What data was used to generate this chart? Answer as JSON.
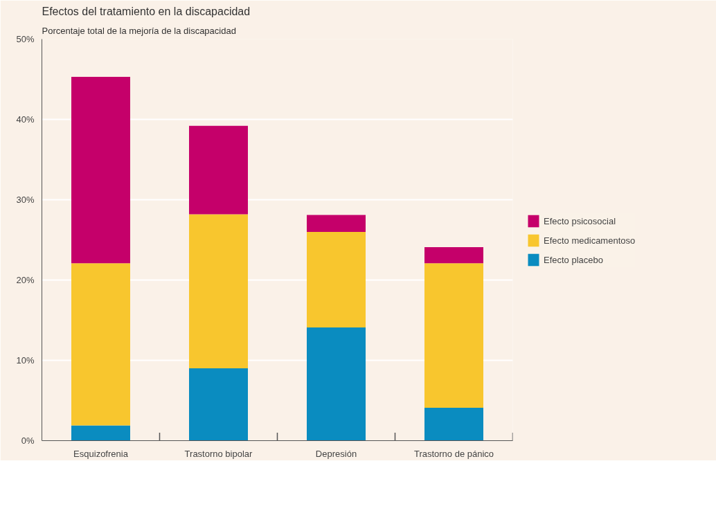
{
  "chart_data": {
    "type": "bar",
    "title": "Efectos del tratamiento en la discapacidad",
    "subtitle": "Porcentaje total de la mejoría de la discapacidad",
    "categories": [
      "Esquizofrenia",
      "Trastorno bipolar",
      "Depresión",
      "Trastorno de pánico"
    ],
    "stacked": true,
    "series": [
      {
        "name": "Efecto placebo",
        "color": "#0a8cc0",
        "values": [
          1.9,
          9.0,
          14.1,
          4.1
        ]
      },
      {
        "name": "Efecto medicamentoso",
        "color": "#f8c62e",
        "values": [
          20.2,
          19.2,
          11.9,
          18.0
        ]
      },
      {
        "name": "Efecto psicosocial",
        "color": "#c5006a",
        "values": [
          23.2,
          11.0,
          2.1,
          2.0
        ]
      }
    ],
    "ylim": [
      0,
      50
    ],
    "yticks": [
      {
        "value": 0,
        "label": "0%"
      },
      {
        "value": 10,
        "label": "10%"
      },
      {
        "value": 20,
        "label": "20%"
      },
      {
        "value": 30,
        "label": "30%"
      },
      {
        "value": 40,
        "label": "40%"
      },
      {
        "value": 50,
        "label": "50%"
      }
    ],
    "grid": "y",
    "legend": "right"
  }
}
